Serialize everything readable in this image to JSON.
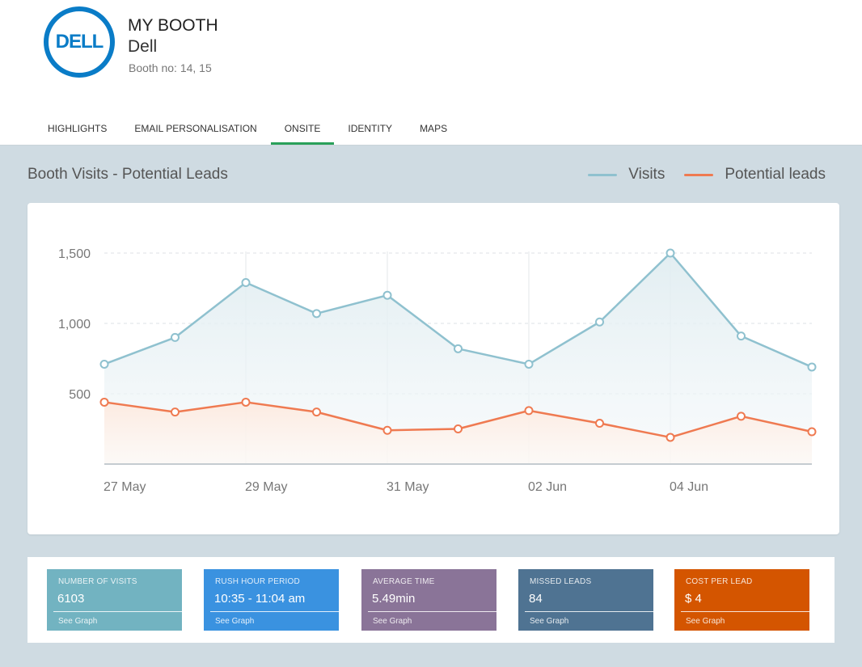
{
  "header": {
    "logo_text": "DELL",
    "title": "MY BOOTH",
    "company": "Dell",
    "booth_no": "Booth no: 14, 15"
  },
  "tabs": [
    {
      "label": "HIGHLIGHTS",
      "active": false
    },
    {
      "label": "EMAIL PERSONALISATION",
      "active": false
    },
    {
      "label": "ONSITE",
      "active": true
    },
    {
      "label": "IDENTITY",
      "active": false
    },
    {
      "label": "MAPS",
      "active": false
    }
  ],
  "section": {
    "title": "Booth Visits - Potential Leads",
    "legend": [
      {
        "label": "Visits",
        "color": "#8fc1cf"
      },
      {
        "label": "Potential leads",
        "color": "#ef7a51"
      }
    ]
  },
  "chart_data": {
    "type": "line",
    "x": [
      "27 May",
      "28 May",
      "29 May",
      "30 May",
      "31 May",
      "01 Jun",
      "02 Jun",
      "03 Jun",
      "04 Jun",
      "05 Jun",
      "06 Jun"
    ],
    "x_tick_labels": [
      "27 May",
      "29 May",
      "31 May",
      "02 Jun",
      "04 Jun"
    ],
    "y_ticks": [
      "500",
      "1,000",
      "1,500"
    ],
    "ylim": [
      0,
      1500
    ],
    "grid": true,
    "series": [
      {
        "name": "Visits",
        "color": "#8fc1cf",
        "values": [
          710,
          900,
          1290,
          1070,
          1200,
          820,
          710,
          1010,
          1500,
          910,
          690
        ]
      },
      {
        "name": "Potential leads",
        "color": "#ef7a51",
        "values": [
          440,
          370,
          440,
          370,
          240,
          250,
          380,
          290,
          190,
          340,
          230
        ]
      }
    ]
  },
  "stats": [
    {
      "label": "NUMBER OF VISITS",
      "value": "6103",
      "link": "See Graph",
      "color": "#72b3c1"
    },
    {
      "label": "RUSH HOUR PERIOD",
      "value": "10:35 - 11:04 am",
      "link": "See Graph",
      "color": "#3a92e0"
    },
    {
      "label": "AVERAGE TIME",
      "value": "5.49min",
      "link": "See Graph",
      "color": "#8a7498"
    },
    {
      "label": "MISSED LEADS",
      "value": "84",
      "link": "See Graph",
      "color": "#4f7392"
    },
    {
      "label": "COST PER LEAD",
      "value": "$ 4",
      "link": "See Graph",
      "color": "#d45500"
    }
  ]
}
